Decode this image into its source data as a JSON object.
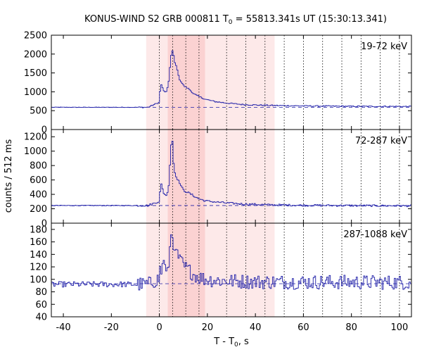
{
  "chart_data": {
    "type": "line",
    "title": {
      "prefix": "KONUS-WIND S2 GRB 000811 T",
      "sub": "0",
      "suffix": " = 55813.341s UT (15:30:13.341)"
    },
    "xlabel": {
      "prefix": "T - T",
      "sub": "0",
      "suffix": ", s"
    },
    "ylabel": "counts / 512 ms",
    "xlim": [
      -45,
      105
    ],
    "x_ticks": [
      -40,
      -20,
      0,
      20,
      40,
      60,
      80,
      100
    ],
    "dotted_lines_x": [
      0,
      5.5,
      11,
      16.5,
      28,
      36,
      44,
      52,
      60,
      68,
      76,
      84,
      92,
      100
    ],
    "shaded_regions": [
      {
        "x0": -5.5,
        "x1": 48,
        "color": "#fde9e9"
      },
      {
        "x0": 3.5,
        "x1": 19,
        "color": "#fbd2d2"
      }
    ],
    "line_color": "#1f1fa8",
    "panels": [
      {
        "band": "19-72 keV",
        "ylim": [
          0,
          2500
        ],
        "y_ticks": [
          0,
          500,
          1000,
          1500,
          2000,
          2500
        ],
        "background": 590,
        "pre_level": 590,
        "tail_level": 610,
        "spike": [
          [
            0,
            990
          ],
          [
            0.5,
            1200
          ],
          [
            1.5,
            1030
          ],
          [
            2.5,
            980
          ],
          [
            3.5,
            1180
          ],
          [
            4.5,
            1900
          ],
          [
            5,
            2100
          ],
          [
            5.5,
            2050
          ],
          [
            6,
            1800
          ],
          [
            7,
            1650
          ],
          [
            8,
            1350
          ],
          [
            9,
            1250
          ],
          [
            10,
            1150
          ],
          [
            12,
            1080
          ],
          [
            14,
            950
          ],
          [
            16,
            880
          ],
          [
            19,
            800
          ],
          [
            23,
            740
          ],
          [
            28,
            700
          ],
          [
            35,
            660
          ],
          [
            45,
            640
          ],
          [
            60,
            625
          ],
          [
            80,
            615
          ],
          [
            105,
            610
          ]
        ],
        "noise": 12
      },
      {
        "band": "72-287 keV",
        "ylim": [
          0,
          1300
        ],
        "y_ticks": [
          0,
          200,
          400,
          600,
          800,
          1000,
          1200
        ],
        "background": 245,
        "pre_level": 245,
        "tail_level": 240,
        "spike": [
          [
            0,
            420
          ],
          [
            0.5,
            550
          ],
          [
            1.5,
            420
          ],
          [
            2.5,
            380
          ],
          [
            3.5,
            450
          ],
          [
            4.5,
            1000
          ],
          [
            5,
            1270
          ],
          [
            5.5,
            900
          ],
          [
            6,
            720
          ],
          [
            7,
            620
          ],
          [
            8,
            580
          ],
          [
            9,
            500
          ],
          [
            10,
            450
          ],
          [
            12,
            420
          ],
          [
            14,
            380
          ],
          [
            16,
            340
          ],
          [
            19,
            310
          ],
          [
            23,
            295
          ],
          [
            28,
            280
          ],
          [
            35,
            265
          ],
          [
            45,
            255
          ],
          [
            60,
            248
          ],
          [
            80,
            244
          ],
          [
            105,
            240
          ]
        ],
        "noise": 10
      },
      {
        "band": "287-1088 keV",
        "ylim": [
          40,
          190
        ],
        "y_ticks": [
          40,
          60,
          80,
          100,
          120,
          140,
          160,
          180
        ],
        "background": 93,
        "pre_level": 92,
        "tail_level": 95,
        "spike": [
          [
            0,
            120
          ],
          [
            0.5,
            108
          ],
          [
            1.5,
            135
          ],
          [
            2.5,
            112
          ],
          [
            3.5,
            115
          ],
          [
            4.5,
            170
          ],
          [
            5,
            175
          ],
          [
            5.5,
            160
          ],
          [
            6,
            140
          ],
          [
            7,
            148
          ],
          [
            8,
            130
          ],
          [
            9,
            128
          ],
          [
            10,
            120
          ],
          [
            12,
            115
          ],
          [
            14,
            108
          ],
          [
            16,
            104
          ],
          [
            19,
            100
          ],
          [
            25,
            98
          ],
          [
            40,
            96
          ],
          [
            105,
            95
          ]
        ],
        "noise": 9
      }
    ]
  }
}
